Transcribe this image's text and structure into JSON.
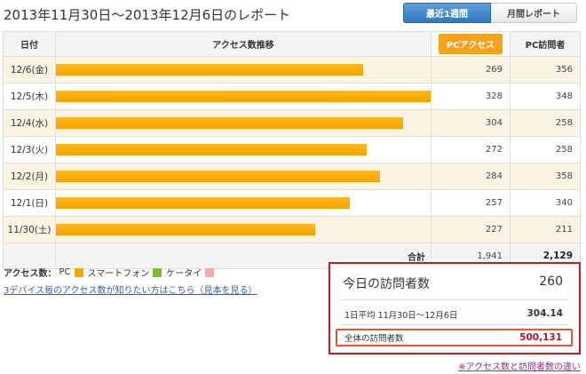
{
  "page": {
    "title": "2013年11月30日〜2013年12月6日のレポート"
  },
  "tabs": [
    {
      "label": "最近1週間",
      "active": true
    },
    {
      "label": "月間レポート",
      "active": false
    }
  ],
  "table": {
    "headers": {
      "date": "日付",
      "trend": "アクセス数推移",
      "pc_access": "PCアクセス",
      "pc_visitors": "PC訪問者"
    },
    "rows": [
      {
        "date": "12/6(金)",
        "pc_access": "269",
        "pc_visitors": "356"
      },
      {
        "date": "12/5(木)",
        "pc_access": "328",
        "pc_visitors": "348"
      },
      {
        "date": "12/4(水)",
        "pc_access": "304",
        "pc_visitors": "258"
      },
      {
        "date": "12/3(火)",
        "pc_access": "272",
        "pc_visitors": "258"
      },
      {
        "date": "12/2(月)",
        "pc_access": "284",
        "pc_visitors": "358"
      },
      {
        "date": "12/1(日)",
        "pc_access": "257",
        "pc_visitors": "340"
      },
      {
        "date": "11/30(土)",
        "pc_access": "227",
        "pc_visitors": "211"
      }
    ],
    "total": {
      "label": "合計",
      "pc_access": "1,941",
      "pc_visitors": "2,129"
    },
    "bar_max": 328,
    "bar_color": "#f7a800"
  },
  "legend": {
    "label": "アクセス数：",
    "items": [
      {
        "label": "PC",
        "color": "#f7a800"
      },
      {
        "label": "スマートフォン",
        "color": "#78c02a"
      },
      {
        "label": "ケータイ",
        "color": "#f4a9a9"
      }
    ]
  },
  "device_link": "3デバイス毎のアクセス数が知りたい方はこちら（見本を見る）",
  "summary": {
    "today_label": "今日の訪問者数",
    "today_value": "260",
    "avg_label": "1日平均 11月30日〜12月6日",
    "avg_value": "304.14",
    "total_label": "全体の訪問者数",
    "total_value": "500,131"
  },
  "diff_link": "※アクセス数と訪問者数の違い",
  "colors": {
    "accent_blue": "#2f77c1",
    "alert_red": "#c81a1a",
    "link": "#2a5fb8"
  }
}
